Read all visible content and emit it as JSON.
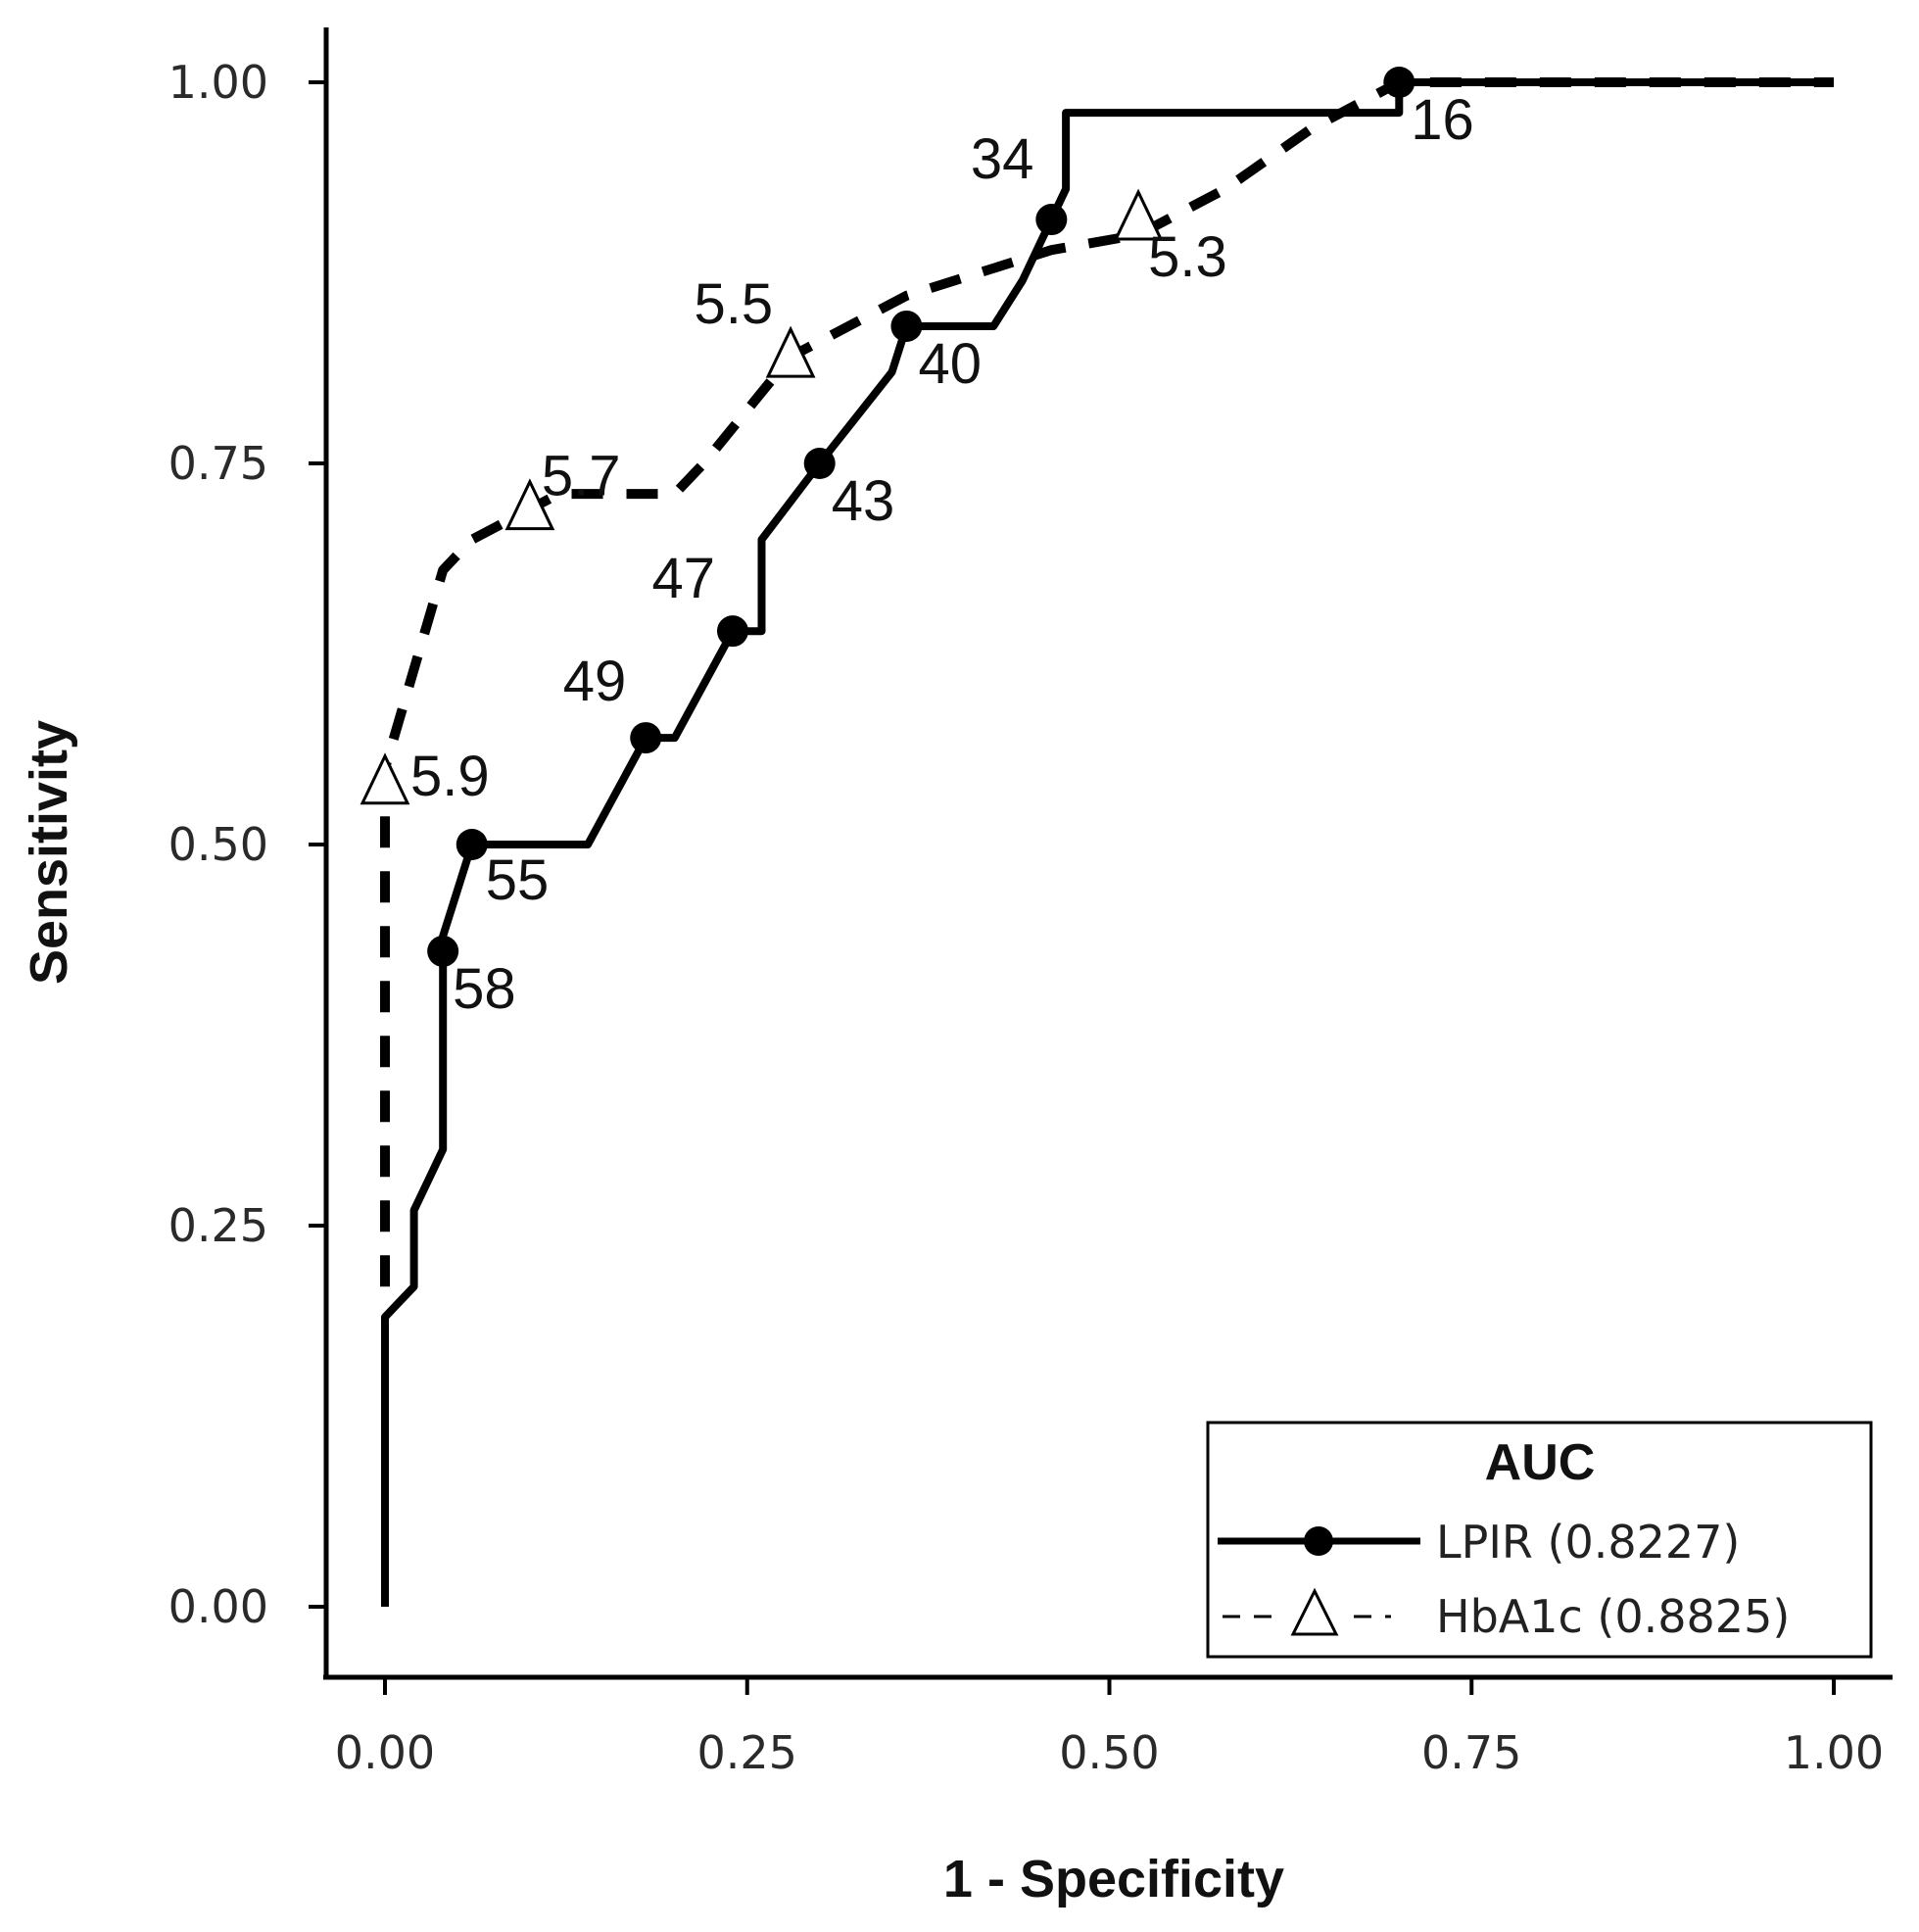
{
  "chart_data": {
    "type": "line",
    "xlabel": "1 - Specificity",
    "ylabel": "Sensitivity",
    "xlim": [
      0,
      1
    ],
    "ylim": [
      0,
      1
    ],
    "x_ticks": [
      "0.00",
      "0.25",
      "0.50",
      "0.75",
      "1.00"
    ],
    "y_ticks": [
      "0.00",
      "0.25",
      "0.50",
      "0.75",
      "1.00"
    ],
    "grid": false,
    "legend": {
      "title": "AUC",
      "placement": "bottom-right",
      "entries": [
        "LPIR (0.8227)",
        "HbA1c (0.8825)"
      ]
    },
    "series": [
      {
        "name": "LPIR (0.8227)",
        "style": "solid",
        "marker": "filled-circle",
        "color": "#000000",
        "x": [
          0.0,
          0.0,
          0.01,
          0.01,
          0.02,
          0.02,
          0.03,
          0.04,
          0.04,
          0.04,
          0.06,
          0.06,
          0.14,
          0.18,
          0.2,
          0.24,
          0.26,
          0.26,
          0.3,
          0.35,
          0.36,
          0.42,
          0.44,
          0.46,
          0.47,
          0.47,
          0.7,
          0.7,
          1.0
        ],
        "y": [
          0.0,
          0.19,
          0.2,
          0.2,
          0.21,
          0.26,
          0.28,
          0.3,
          0.44,
          0.44,
          0.5,
          0.5,
          0.5,
          0.57,
          0.57,
          0.64,
          0.64,
          0.7,
          0.75,
          0.81,
          0.84,
          0.84,
          0.87,
          0.91,
          0.93,
          0.98,
          0.98,
          1.0,
          1.0
        ]
      },
      {
        "name": "HbA1c (0.8825)",
        "style": "dashed",
        "marker": "open-triangle",
        "color": "#000000",
        "x": [
          0.0,
          0.0,
          0.0,
          0.04,
          0.06,
          0.1,
          0.12,
          0.2,
          0.22,
          0.28,
          0.36,
          0.46,
          0.52,
          0.58,
          0.64,
          0.7,
          1.0
        ],
        "y": [
          0.21,
          0.54,
          0.55,
          0.68,
          0.7,
          0.72,
          0.73,
          0.73,
          0.75,
          0.82,
          0.86,
          0.89,
          0.9,
          0.93,
          0.97,
          1.0,
          1.0
        ]
      }
    ],
    "point_labels": [
      {
        "series": 0,
        "x": 0.04,
        "y": 0.43,
        "text": "58"
      },
      {
        "series": 0,
        "x": 0.06,
        "y": 0.5,
        "text": "55"
      },
      {
        "series": 0,
        "x": 0.18,
        "y": 0.57,
        "text": "49"
      },
      {
        "series": 0,
        "x": 0.24,
        "y": 0.64,
        "text": "47"
      },
      {
        "series": 0,
        "x": 0.3,
        "y": 0.75,
        "text": "43"
      },
      {
        "series": 0,
        "x": 0.36,
        "y": 0.84,
        "text": "40"
      },
      {
        "series": 0,
        "x": 0.46,
        "y": 0.91,
        "text": "34"
      },
      {
        "series": 0,
        "x": 0.7,
        "y": 1.0,
        "text": "16"
      },
      {
        "series": 1,
        "x": 0.0,
        "y": 0.54,
        "text": "5.9"
      },
      {
        "series": 1,
        "x": 0.1,
        "y": 0.72,
        "text": "5.7"
      },
      {
        "series": 1,
        "x": 0.28,
        "y": 0.82,
        "text": "5.5"
      },
      {
        "series": 1,
        "x": 0.52,
        "y": 0.91,
        "text": "5.3"
      }
    ]
  }
}
